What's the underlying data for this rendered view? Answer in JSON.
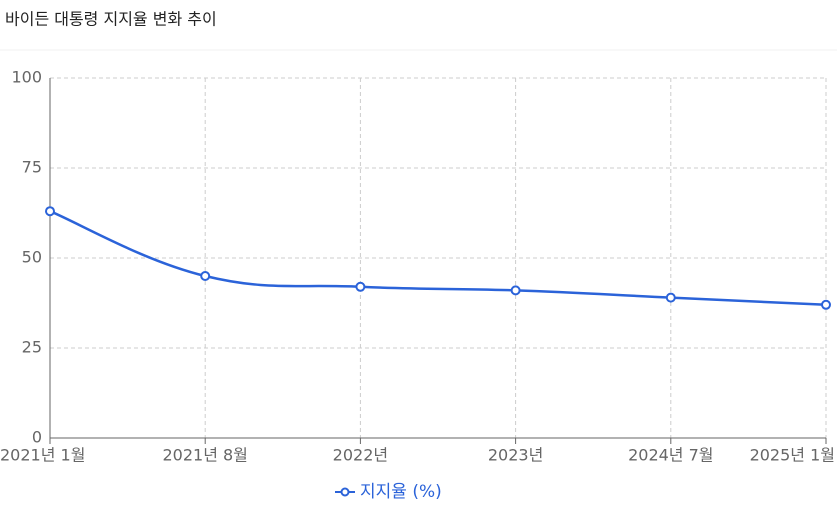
{
  "chart_data": {
    "type": "line",
    "title": "바이든 대통령 지지율 변화 추이",
    "categories": [
      "2021년 1월",
      "2021년 8월",
      "2022년",
      "2023년",
      "2024년 7월",
      "2025년 1월"
    ],
    "series": [
      {
        "name": "지지율 (%)",
        "color": "#2b63d9",
        "values": [
          63,
          45,
          42,
          41,
          39,
          37
        ]
      }
    ],
    "ylim": [
      0,
      100
    ],
    "yticks": [
      0,
      25,
      50,
      75,
      100
    ],
    "grid": true,
    "legend": "bottom"
  }
}
